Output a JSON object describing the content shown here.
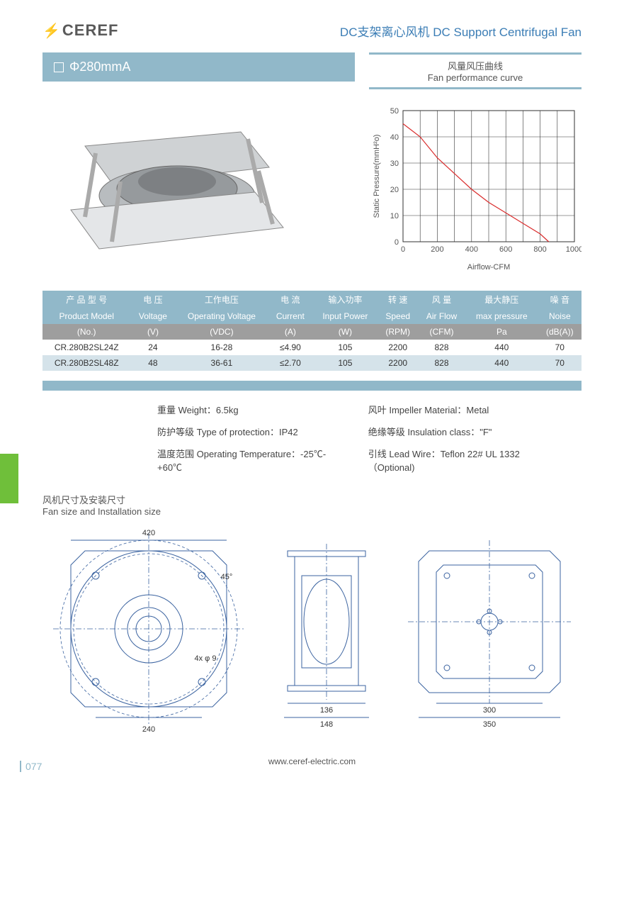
{
  "header": {
    "logo_text": "CEREF",
    "title_cn": "DC支架离心风机",
    "title_en": "DC Support Centrifugal Fan"
  },
  "model_bar": {
    "label": "Φ280mmA"
  },
  "curve_box": {
    "cn": "风量风压曲线",
    "en": "Fan performance curve"
  },
  "chart": {
    "type": "line",
    "x_label": "Airflow-CFM",
    "y_label": "Static Pressure(mmH²o)",
    "xlim": [
      0,
      1000
    ],
    "xtick_step": 200,
    "ylim": [
      0,
      50
    ],
    "ytick_step": 10,
    "grid_color": "#333333",
    "line_color": "#d92b2b",
    "line_width": 1.2,
    "bg_color": "#ffffff",
    "points": [
      [
        0,
        45
      ],
      [
        100,
        40
      ],
      [
        200,
        32
      ],
      [
        300,
        26
      ],
      [
        400,
        20
      ],
      [
        500,
        15
      ],
      [
        600,
        11
      ],
      [
        700,
        7
      ],
      [
        800,
        3
      ],
      [
        850,
        0
      ]
    ]
  },
  "spec_table": {
    "headers_cn": [
      "产 品 型 号",
      "电 压",
      "工作电压",
      "电 流",
      "输入功率",
      "转 速",
      "风 量",
      "最大静压",
      "噪 音"
    ],
    "headers_en": [
      "Product Model",
      "Voltage",
      "Operating Voltage",
      "Current",
      "Input Power",
      "Speed",
      "Air Flow",
      "max pressure",
      "Noise"
    ],
    "units": [
      "(No.)",
      "(V)",
      "(VDC)",
      "(A)",
      "(W)",
      "(RPM)",
      "(CFM)",
      "Pa",
      "(dB(A))"
    ],
    "rows": [
      [
        "CR.280B2SL24Z",
        "24",
        "16-28",
        "≤4.90",
        "105",
        "2200",
        "828",
        "440",
        "70"
      ],
      [
        "CR.280B2SL48Z",
        "48",
        "36-61",
        "≤2.70",
        "105",
        "2200",
        "828",
        "440",
        "70"
      ]
    ],
    "header_bg": "#91b8c9",
    "unit_bg": "#9e9e9e",
    "row_alt_bg": "#d5e3ea"
  },
  "info": {
    "weight": "重量 Weight：6.5kg",
    "impeller": "风叶 Impeller Material：Metal",
    "protection": "防护等级 Type of protection：IP42",
    "insulation": "绝缘等级 Insulation class：\"F\"",
    "temp": "温度范围 Operating Temperature：-25℃-+60℃",
    "lead": "引线 Lead Wire：Teflon 22# UL  1332（Optional)"
  },
  "section": {
    "cn": "风机尺寸及安装尺寸",
    "en": "Fan size and Installation size"
  },
  "dimensions": {
    "front": {
      "outer": "420",
      "bolt_circle": "240",
      "hole": "4x φ 9",
      "chamfer": "45°"
    },
    "side": {
      "d1": "136",
      "d2": "148"
    },
    "back": {
      "d1": "300",
      "d2": "350"
    }
  },
  "footer": {
    "url": "www.ceref-electric.com",
    "page": "077"
  },
  "colors": {
    "accent": "#91b8c9",
    "link": "#3b7db5",
    "green": "#6fbf3a"
  }
}
